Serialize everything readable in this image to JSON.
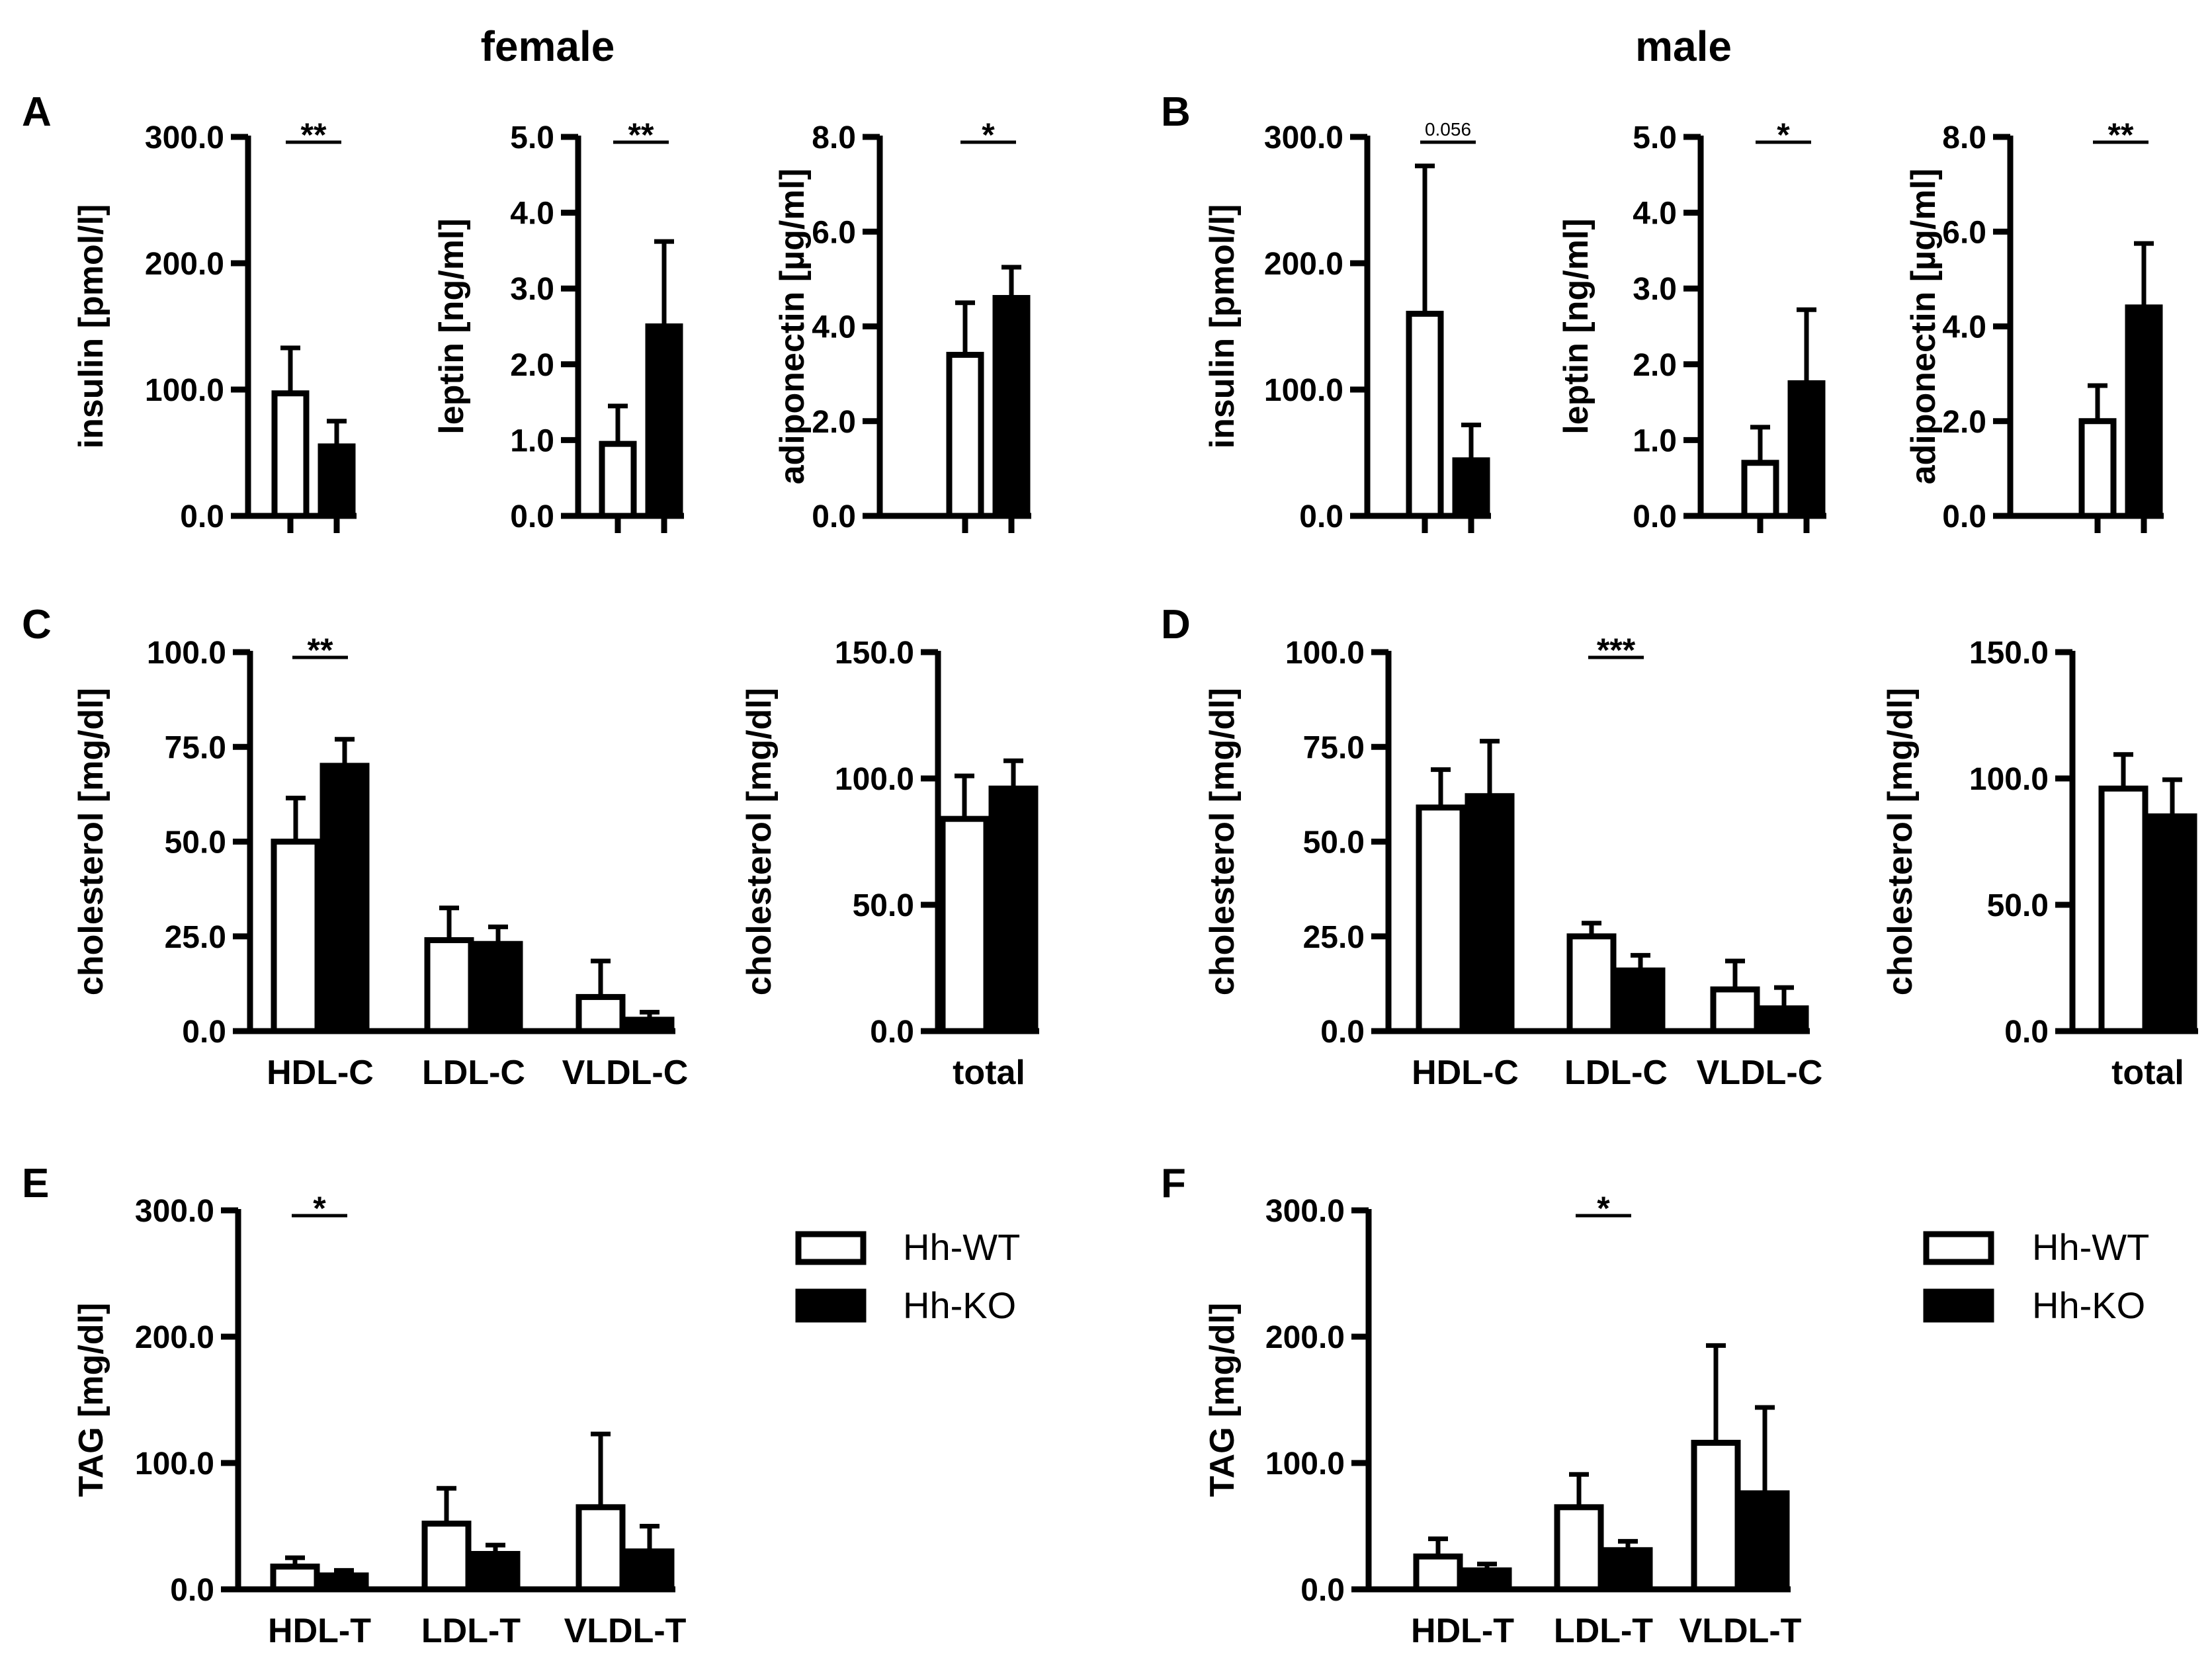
{
  "columns": {
    "left_title": "female",
    "right_title": "male"
  },
  "legend": {
    "wt_label": "Hh-WT",
    "ko_label": "Hh-KO",
    "wt_color": "#ffffff",
    "ko_color": "#000000",
    "edge_color": "#000000"
  },
  "chart_data": [
    {
      "id": "A1",
      "panel_letter": "A",
      "type": "bar",
      "ylabel": "insulin [pmol/l]",
      "ylim": [
        0,
        300
      ],
      "yticks": [
        "0.0",
        "100.0",
        "200.0",
        "300.0"
      ],
      "categories": [
        ""
      ],
      "series": [
        {
          "name": "Hh-WT",
          "values": [
            97
          ],
          "errors": [
            36
          ]
        },
        {
          "name": "Hh-KO",
          "values": [
            55
          ],
          "errors": [
            20
          ]
        }
      ],
      "significance": [
        {
          "category": 0,
          "label": "**"
        }
      ]
    },
    {
      "id": "A2",
      "type": "bar",
      "ylabel": "leptin [ng/ml]",
      "ylim": [
        0,
        5
      ],
      "yticks": [
        "0.0",
        "1.0",
        "2.0",
        "3.0",
        "4.0",
        "5.0"
      ],
      "categories": [
        ""
      ],
      "series": [
        {
          "name": "Hh-WT",
          "values": [
            0.95
          ],
          "errors": [
            0.5
          ]
        },
        {
          "name": "Hh-KO",
          "values": [
            2.5
          ],
          "errors": [
            1.12
          ]
        }
      ],
      "significance": [
        {
          "category": 0,
          "label": "**"
        }
      ]
    },
    {
      "id": "A3",
      "type": "bar",
      "ylabel": "adiponectin [µg/ml]",
      "ylim": [
        0,
        8
      ],
      "yticks": [
        "0.0",
        "2.0",
        "4.0",
        "6.0",
        "8.0"
      ],
      "categories": [
        ""
      ],
      "series": [
        {
          "name": "Hh-WT",
          "values": [
            3.4
          ],
          "errors": [
            1.1
          ]
        },
        {
          "name": "Hh-KO",
          "values": [
            4.6
          ],
          "errors": [
            0.65
          ]
        }
      ],
      "significance": [
        {
          "category": 0,
          "label": "*"
        }
      ]
    },
    {
      "id": "B1",
      "panel_letter": "B",
      "type": "bar",
      "ylabel": "insulin [pmol/l]",
      "ylim": [
        0,
        300
      ],
      "yticks": [
        "0.0",
        "100.0",
        "200.0",
        "300.0"
      ],
      "categories": [
        ""
      ],
      "series": [
        {
          "name": "Hh-WT",
          "values": [
            160
          ],
          "errors": [
            117
          ]
        },
        {
          "name": "Hh-KO",
          "values": [
            44
          ],
          "errors": [
            28
          ]
        }
      ],
      "significance": [
        {
          "category": 0,
          "label": "0.056",
          "small": true
        }
      ]
    },
    {
      "id": "B2",
      "type": "bar",
      "ylabel": "leptin [ng/ml]",
      "ylim": [
        0,
        5
      ],
      "yticks": [
        "0.0",
        "1.0",
        "2.0",
        "3.0",
        "4.0",
        "5.0"
      ],
      "categories": [
        ""
      ],
      "series": [
        {
          "name": "Hh-WT",
          "values": [
            0.7
          ],
          "errors": [
            0.47
          ]
        },
        {
          "name": "Hh-KO",
          "values": [
            1.75
          ],
          "errors": [
            0.97
          ]
        }
      ],
      "significance": [
        {
          "category": 0,
          "label": "*"
        }
      ]
    },
    {
      "id": "B3",
      "type": "bar",
      "ylabel": "adiponectin [µg/ml]",
      "ylim": [
        0,
        8
      ],
      "yticks": [
        "0.0",
        "2.0",
        "4.0",
        "6.0",
        "8.0"
      ],
      "categories": [
        ""
      ],
      "series": [
        {
          "name": "Hh-WT",
          "values": [
            2.0
          ],
          "errors": [
            0.75
          ]
        },
        {
          "name": "Hh-KO",
          "values": [
            4.4
          ],
          "errors": [
            1.35
          ]
        }
      ],
      "significance": [
        {
          "category": 0,
          "label": "**"
        }
      ]
    },
    {
      "id": "C1",
      "panel_letter": "C",
      "type": "bar",
      "ylabel": "cholesterol [mg/dl]",
      "ylim": [
        0,
        100
      ],
      "yticks": [
        "0.0",
        "25.0",
        "50.0",
        "75.0",
        "100.0"
      ],
      "categories": [
        "HDL-C",
        "LDL-C",
        "VLDL-C"
      ],
      "series": [
        {
          "name": "Hh-WT",
          "values": [
            50,
            24,
            9
          ],
          "errors": [
            11.5,
            8.5,
            9.5
          ]
        },
        {
          "name": "Hh-KO",
          "values": [
            70,
            23,
            3
          ],
          "errors": [
            7,
            4.5,
            2
          ]
        }
      ],
      "significance": [
        {
          "category": 0,
          "label": "**"
        }
      ]
    },
    {
      "id": "C2",
      "type": "bar",
      "ylabel": "cholesterol [mg/dl]",
      "ylim": [
        0,
        150
      ],
      "yticks": [
        "0.0",
        "50.0",
        "100.0",
        "150.0"
      ],
      "categories": [
        "total"
      ],
      "series": [
        {
          "name": "Hh-WT",
          "values": [
            84
          ],
          "errors": [
            17
          ]
        },
        {
          "name": "Hh-KO",
          "values": [
            96
          ],
          "errors": [
            11
          ]
        }
      ],
      "significance": []
    },
    {
      "id": "D1",
      "panel_letter": "D",
      "type": "bar",
      "ylabel": "cholesterol [mg/dl]",
      "ylim": [
        0,
        100
      ],
      "yticks": [
        "0.0",
        "25.0",
        "50.0",
        "75.0",
        "100.0"
      ],
      "categories": [
        "HDL-C",
        "LDL-C",
        "VLDL-C"
      ],
      "series": [
        {
          "name": "Hh-WT",
          "values": [
            59,
            25,
            11
          ],
          "errors": [
            10,
            3.5,
            7.5
          ]
        },
        {
          "name": "Hh-KO",
          "values": [
            62,
            16,
            6
          ],
          "errors": [
            14.5,
            4,
            5.5
          ]
        }
      ],
      "significance": [
        {
          "category": 1,
          "label": "***"
        }
      ]
    },
    {
      "id": "D2",
      "type": "bar",
      "ylabel": "cholesterol [mg/dl]",
      "ylim": [
        0,
        150
      ],
      "yticks": [
        "0.0",
        "50.0",
        "100.0",
        "150.0"
      ],
      "categories": [
        "total"
      ],
      "series": [
        {
          "name": "Hh-WT",
          "values": [
            96
          ],
          "errors": [
            13.5
          ]
        },
        {
          "name": "Hh-KO",
          "values": [
            85
          ],
          "errors": [
            14.5
          ]
        }
      ],
      "significance": []
    },
    {
      "id": "E",
      "panel_letter": "E",
      "type": "bar",
      "ylabel": "TAG [mg/dl]",
      "ylim": [
        0,
        300
      ],
      "yticks": [
        "0.0",
        "100.0",
        "200.0",
        "300.0"
      ],
      "categories": [
        "HDL-T",
        "LDL-T",
        "VLDL-T"
      ],
      "series": [
        {
          "name": "Hh-WT",
          "values": [
            18,
            52,
            65
          ],
          "errors": [
            7,
            28,
            58
          ]
        },
        {
          "name": "Hh-KO",
          "values": [
            11,
            28,
            30
          ],
          "errors": [
            4,
            7,
            20
          ]
        }
      ],
      "significance": [
        {
          "category": 0,
          "label": "*"
        }
      ]
    },
    {
      "id": "F",
      "panel_letter": "F",
      "type": "bar",
      "ylabel": "TAG [mg/dl]",
      "ylim": [
        0,
        300
      ],
      "yticks": [
        "0.0",
        "100.0",
        "200.0",
        "300.0"
      ],
      "categories": [
        "HDL-T",
        "LDL-T",
        "VLDL-T"
      ],
      "series": [
        {
          "name": "Hh-WT",
          "values": [
            26,
            65,
            116
          ],
          "errors": [
            14,
            26,
            77
          ]
        },
        {
          "name": "Hh-KO",
          "values": [
            15,
            31,
            76
          ],
          "errors": [
            5,
            7,
            68
          ]
        }
      ],
      "significance": [
        {
          "category": 1,
          "label": "*"
        }
      ]
    }
  ]
}
